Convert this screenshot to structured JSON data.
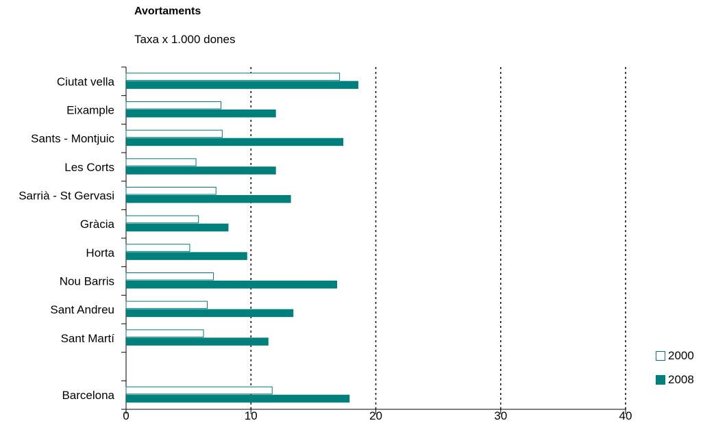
{
  "chart_data": {
    "type": "bar",
    "orientation": "horizontal",
    "title": "Avortaments",
    "subtitle": "Taxa x 1.000 dones",
    "categories": [
      "Ciutat vella",
      "Eixample",
      "Sants - Montjuic",
      "Les Corts",
      "Sarrià - St Gervasi",
      "Gràcia",
      "Horta",
      "Nou Barris",
      "Sant Andreu",
      "Sant Martí",
      "",
      "Barcelona"
    ],
    "series": [
      {
        "name": "2000",
        "values": [
          17.1,
          7.6,
          7.7,
          5.6,
          7.2,
          5.8,
          5.1,
          7.0,
          6.5,
          6.2,
          null,
          11.7
        ]
      },
      {
        "name": "2008",
        "values": [
          18.6,
          12.0,
          17.4,
          12.0,
          13.2,
          8.2,
          9.7,
          16.9,
          13.4,
          11.4,
          null,
          17.9
        ]
      }
    ],
    "xlim": [
      0,
      40
    ],
    "xticks": [
      "0",
      "10",
      "20",
      "30",
      "40"
    ],
    "grid": "dotted vertical",
    "legend": "bottom-right",
    "colors": {
      "2000_fill": "#ffffff",
      "2000_stroke": "#007a78",
      "2008_fill": "#00807d"
    }
  }
}
